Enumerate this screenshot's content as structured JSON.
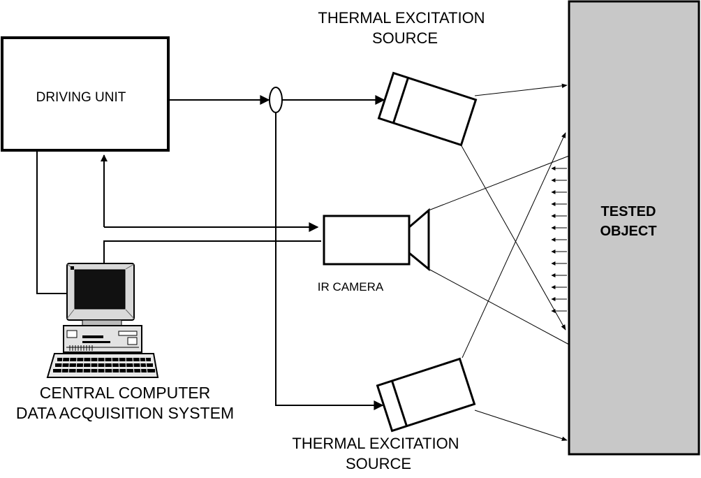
{
  "labels": {
    "driving_unit": "DRIVING UNIT",
    "source_top_line1": "THERMAL EXCITATION",
    "source_top_line2": "SOURCE",
    "source_bottom_line1": "THERMAL EXCITATION",
    "source_bottom_line2": "SOURCE",
    "ir_camera": "IR CAMERA",
    "tested_object_line1": "TESTED",
    "tested_object_line2": "OBJECT",
    "computer_line1": "CENTRAL COMPUTER",
    "computer_line2": "DATA ACQUISITION SYSTEM"
  },
  "colors": {
    "line": "#000000",
    "tested_object_fill": "#c8c8c8",
    "monitor_screen": "#111111",
    "monitor_bezel": "#d9d9d9"
  }
}
